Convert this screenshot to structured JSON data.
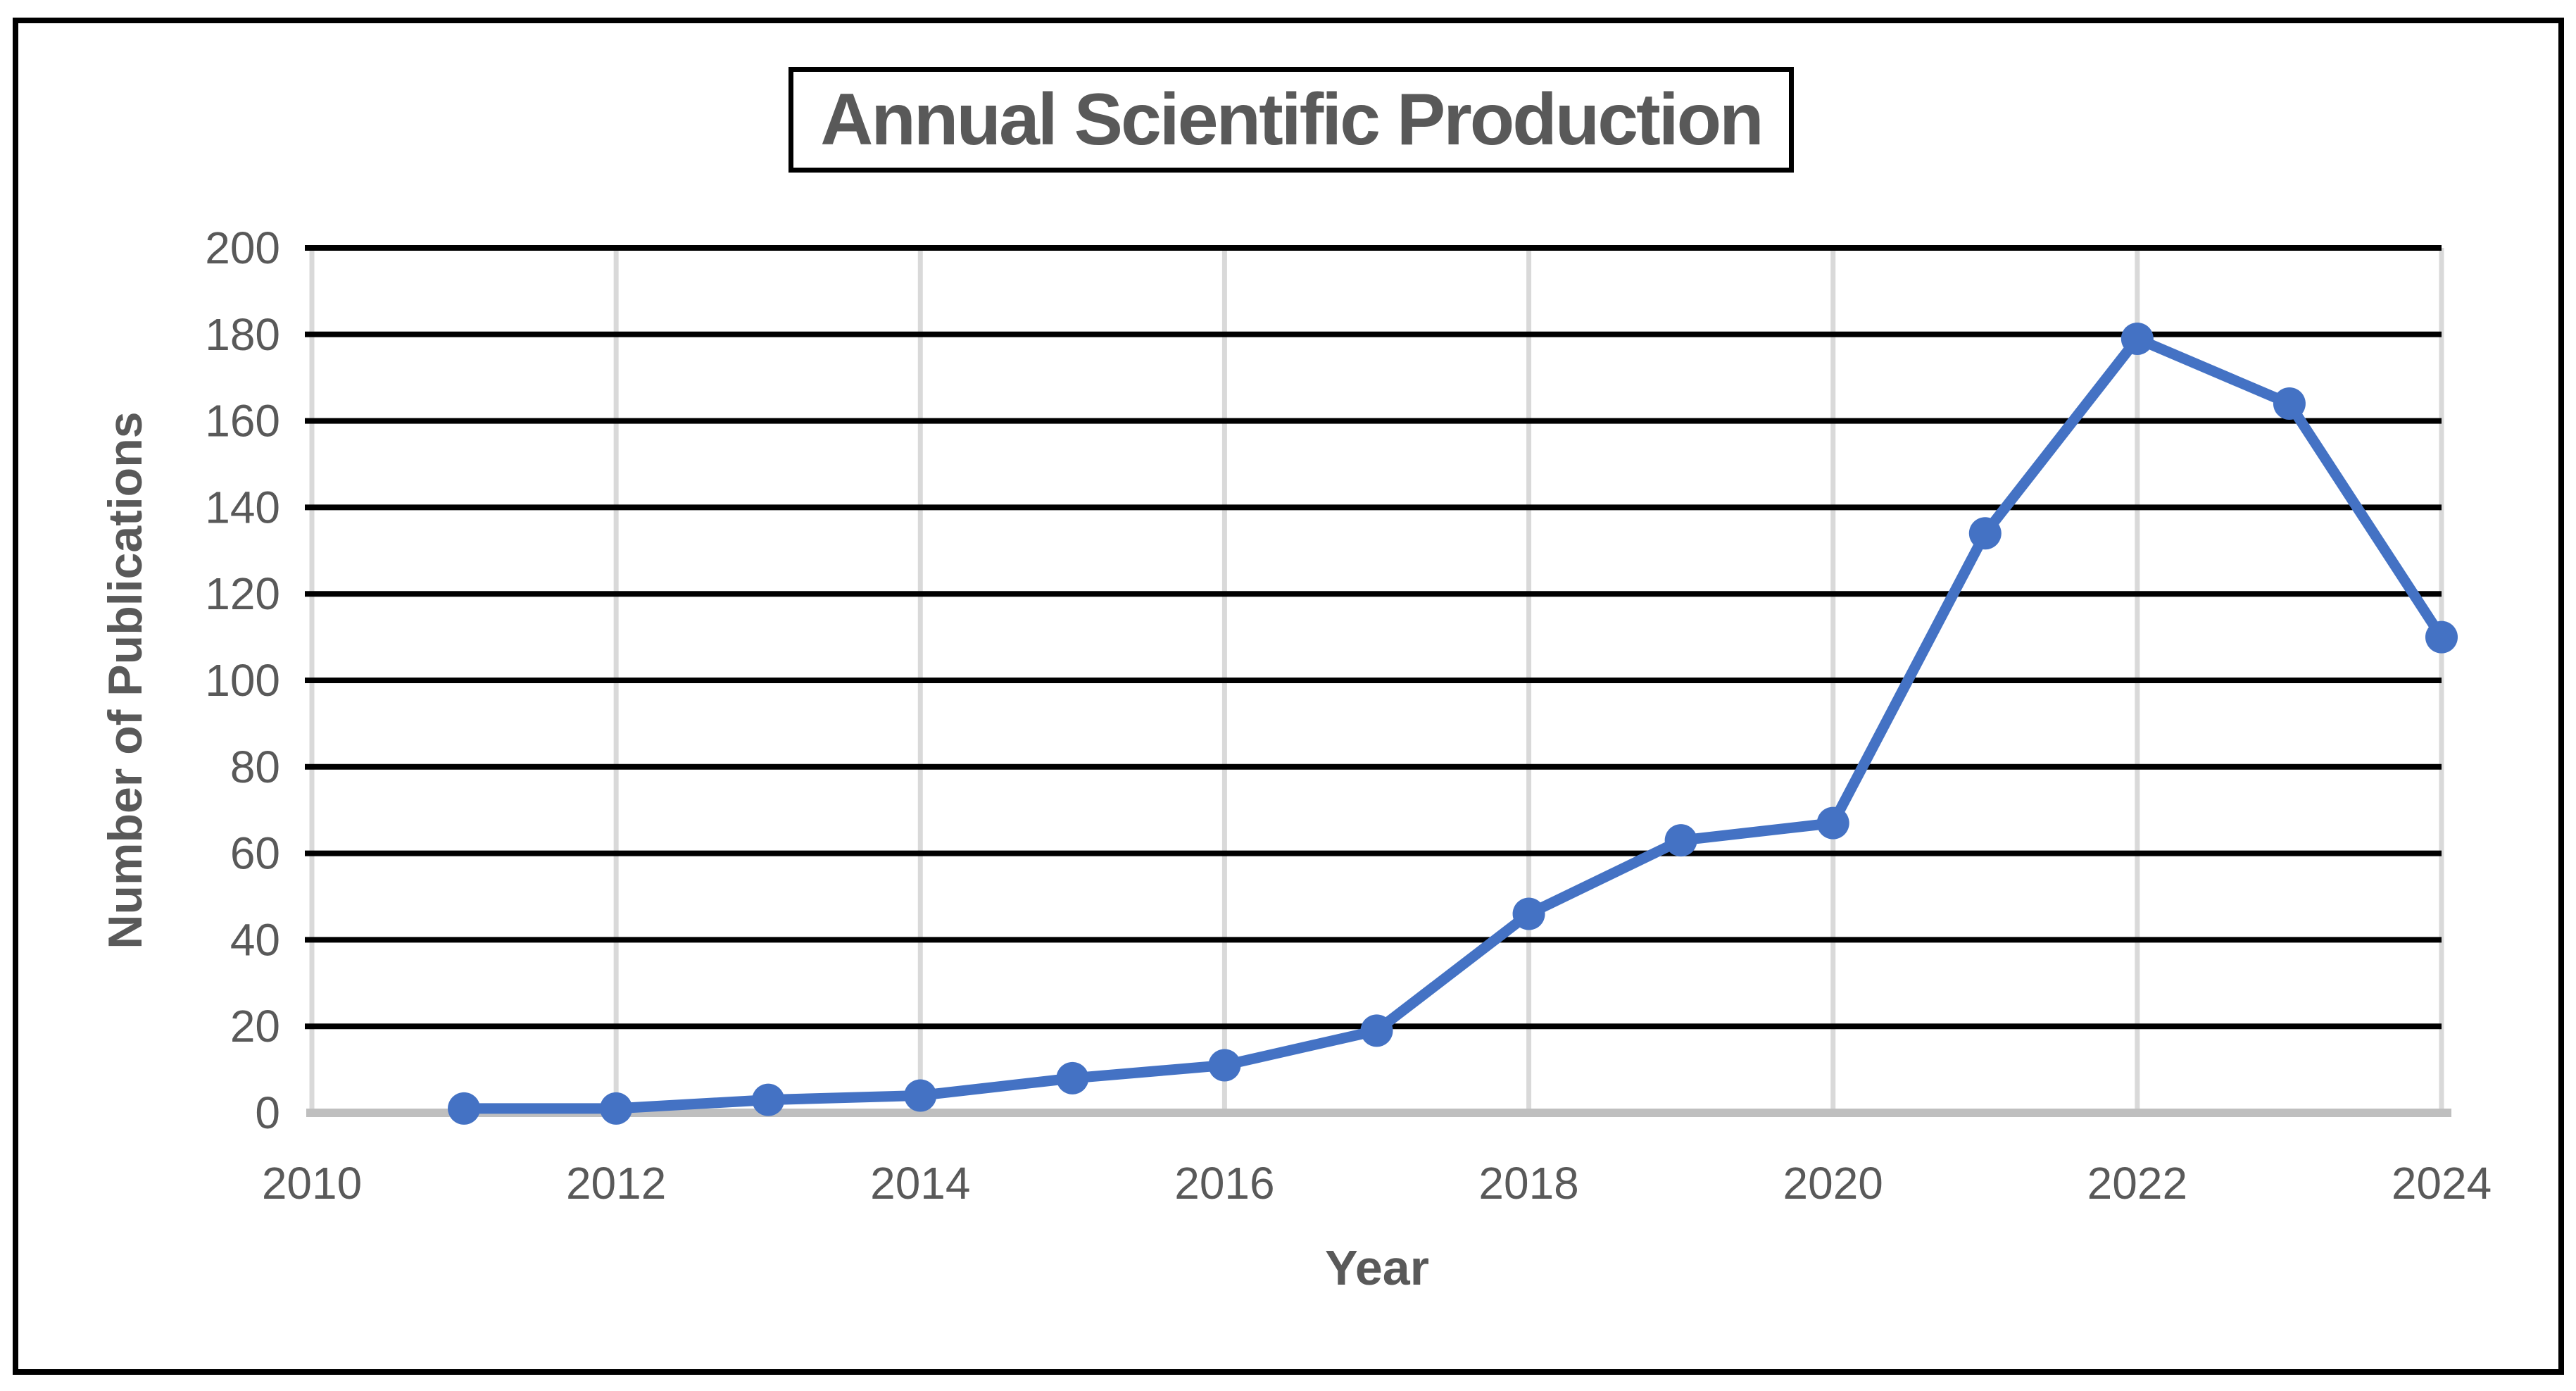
{
  "chart_data": {
    "type": "line",
    "title": "Annual Scientific Production",
    "xlabel": "Year",
    "ylabel": "Number of Publications",
    "x": [
      2011,
      2012,
      2013,
      2014,
      2015,
      2016,
      2017,
      2018,
      2019,
      2020,
      2021,
      2022,
      2023,
      2024
    ],
    "series": [
      {
        "name": "Number of Publications",
        "values": [
          1,
          1,
          3,
          4,
          8,
          11,
          19,
          46,
          63,
          67,
          134,
          179,
          164,
          110
        ]
      }
    ],
    "x_tick_labels": [
      "2010",
      "2012",
      "2014",
      "2016",
      "2018",
      "2020",
      "2022",
      "2024"
    ],
    "y_ticks": [
      0,
      20,
      40,
      60,
      80,
      100,
      120,
      140,
      160,
      180,
      200
    ],
    "xlim": [
      2010,
      2024
    ],
    "ylim": [
      0,
      200
    ],
    "legend": "none",
    "grid": "on",
    "colors": {
      "line": "#4472C4",
      "marker": "#4472C4",
      "h_gridline": "#000000",
      "v_gridline": "#D9D9D9",
      "axis_line": "#BFBFBF",
      "tick_label": "#595959",
      "title_text": "#595959",
      "border": "#000000"
    }
  }
}
